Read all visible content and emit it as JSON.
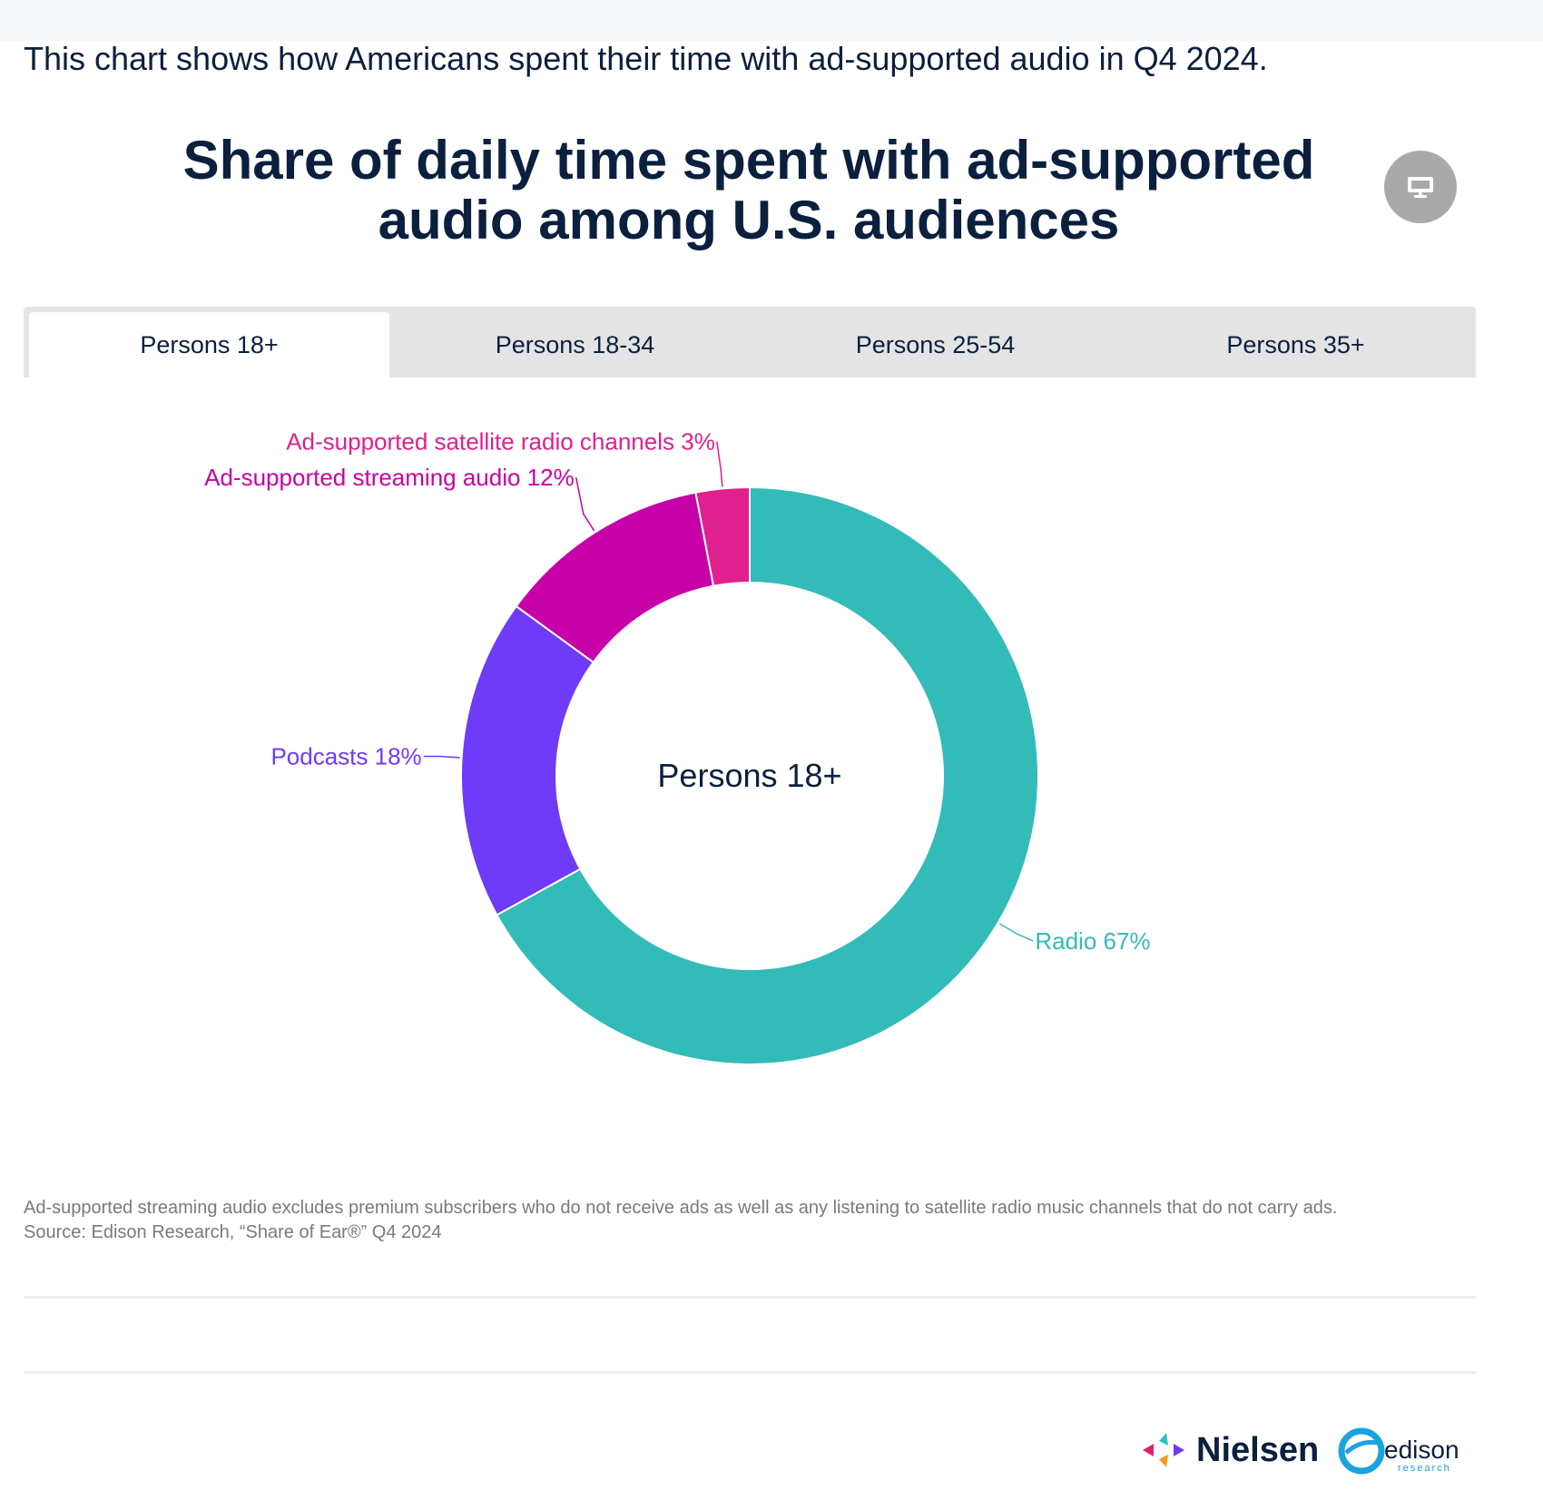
{
  "intro": "This chart shows how Americans spent their time with ad-supported audio in Q4 2024.",
  "title": "Share of daily time spent with ad-supported audio among U.S. audiences",
  "present_button": {
    "icon": "monitor-icon"
  },
  "tabs": [
    {
      "label": "Persons 18+",
      "active": true
    },
    {
      "label": "Persons 18-34",
      "active": false
    },
    {
      "label": "Persons 25-54",
      "active": false
    },
    {
      "label": "Persons 35+",
      "active": false
    }
  ],
  "chart_data": {
    "type": "pie",
    "variant": "donut",
    "center_label": "Persons 18+",
    "slices": [
      {
        "label": "Radio",
        "value": 67,
        "value_label": "67%",
        "color": "#32bbb9"
      },
      {
        "label": "Podcasts",
        "value": 18,
        "value_label": "18%",
        "color": "#6f3af8"
      },
      {
        "label": "Ad-supported streaming audio",
        "value": 12,
        "value_label": "12%",
        "color": "#c800a8"
      },
      {
        "label": "Ad-supported satellite radio channels",
        "value": 3,
        "value_label": "3%",
        "color": "#e0208e"
      }
    ]
  },
  "footnote": {
    "note": "Ad-supported streaming audio excludes premium subscribers who do not receive ads as well as any listening to satellite radio music channels that do not carry ads.",
    "source": "Source: Edison Research, “Share of Ear®” Q4 2024"
  },
  "logos": {
    "nielsen": "Nielsen",
    "edison": "edison",
    "edison_sub": "research"
  }
}
